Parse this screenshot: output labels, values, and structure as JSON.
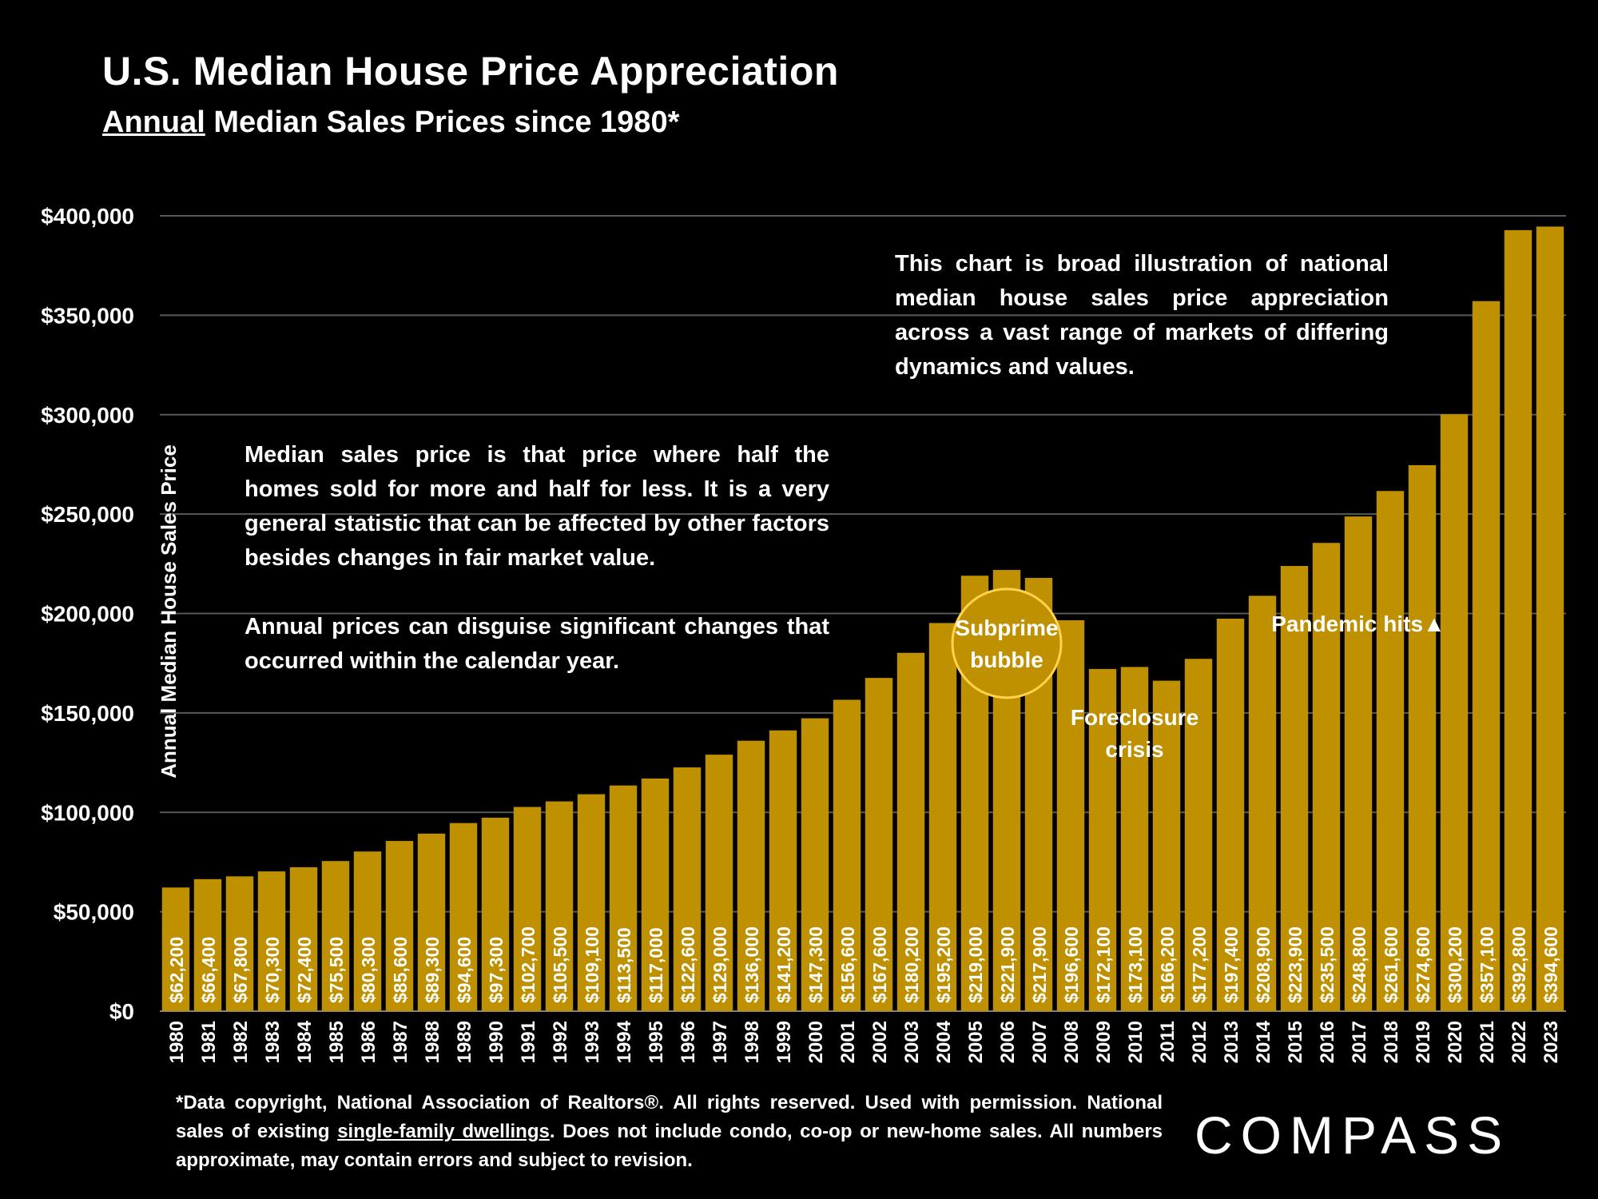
{
  "header": {
    "title": "U.S. Median House Price Appreciation",
    "subtitle_underlined": "Annual",
    "subtitle_rest": " Median Sales Prices since 1980*"
  },
  "notes": {
    "right": "This chart is broad illustration of national median house sales price appreciation across a vast range of markets of differing dynamics and values.",
    "left_p1": "Median sales price is that price where half the homes sold for more and half for less. It is a very general statistic that can be affected by other factors besides changes in fair market value.",
    "left_p2": "Annual prices can disguise significant changes that occurred within the calendar year."
  },
  "footer": {
    "part1": "*Data copyright, National Association of Realtors®. All rights reserved. Used with permission. National sales of existing ",
    "underlined": "single-family dwellings",
    "part2": ". Does not include condo, co-op or new-home sales. All numbers approximate, may contain errors and subject to revision."
  },
  "logo": {
    "text": "COMPASS"
  },
  "colors": {
    "bar": "#BF9000",
    "grid": "#595959",
    "background": "#000000",
    "text": "#FFFFFF",
    "circle": "#FFD34D"
  },
  "chart_data": {
    "type": "bar",
    "title": "U.S. Median House Price Appreciation",
    "ylabel": "Annual Median House Sales Price",
    "xlabel": "",
    "ylim": [
      0,
      400000
    ],
    "yticks": [
      0,
      50000,
      100000,
      150000,
      200000,
      250000,
      300000,
      350000,
      400000
    ],
    "ytick_labels": [
      "$0",
      "$50,000",
      "$100,000",
      "$150,000",
      "$200,000",
      "$250,000",
      "$300,000",
      "$350,000",
      "$400,000"
    ],
    "categories": [
      "1980",
      "1981",
      "1982",
      "1983",
      "1984",
      "1985",
      "1986",
      "1987",
      "1988",
      "1989",
      "1990",
      "1991",
      "1992",
      "1993",
      "1994",
      "1995",
      "1996",
      "1997",
      "1998",
      "1999",
      "2000",
      "2001",
      "2002",
      "2003",
      "2004",
      "2005",
      "2006",
      "2007",
      "2008",
      "2009",
      "2010",
      "2011",
      "2012",
      "2013",
      "2014",
      "2015",
      "2016",
      "2017",
      "2018",
      "2019",
      "2020",
      "2021",
      "2022",
      "2023"
    ],
    "values": [
      62200,
      66400,
      67800,
      70300,
      72400,
      75500,
      80300,
      85600,
      89300,
      94600,
      97300,
      102700,
      105500,
      109100,
      113500,
      117000,
      122600,
      129000,
      136000,
      141200,
      147300,
      156600,
      167600,
      180200,
      195200,
      219000,
      221900,
      217900,
      196600,
      172100,
      173100,
      166200,
      177200,
      197400,
      208900,
      223900,
      235500,
      248800,
      261600,
      274600,
      300200,
      357100,
      392800,
      394600
    ],
    "data_labels": [
      "$62,200",
      "$66,400",
      "$67,800",
      "$70,300",
      "$72,400",
      "$75,500",
      "$80,300",
      "$85,600",
      "$89,300",
      "$94,600",
      "$97,300",
      "$102,700",
      "$105,500",
      "$109,100",
      "$113,500",
      "$117,000",
      "$122,600",
      "$129,000",
      "$136,000",
      "$141,200",
      "$147,300",
      "$156,600",
      "$167,600",
      "$180,200",
      "$195,200",
      "$219,000",
      "$221,900",
      "$217,900",
      "$196,600",
      "$172,100",
      "$173,100",
      "$166,200",
      "$177,200",
      "$197,400",
      "$208,900",
      "$223,900",
      "$235,500",
      "$248,800",
      "$261,600",
      "$274,600",
      "$300,200",
      "$357,100",
      "$392,800",
      "$394,600"
    ],
    "grid": true,
    "annotations": [
      {
        "text": [
          "Subprime",
          "bubble"
        ],
        "year": "2006",
        "at_value": 185000,
        "style": "circle"
      },
      {
        "text": [
          "Foreclosure",
          "crisis"
        ],
        "year": "2010",
        "at_value": 140000,
        "style": "plain"
      },
      {
        "text": [
          "Pandemic hits▲"
        ],
        "year": "2017",
        "at_value": 195000,
        "style": "plain"
      }
    ]
  }
}
